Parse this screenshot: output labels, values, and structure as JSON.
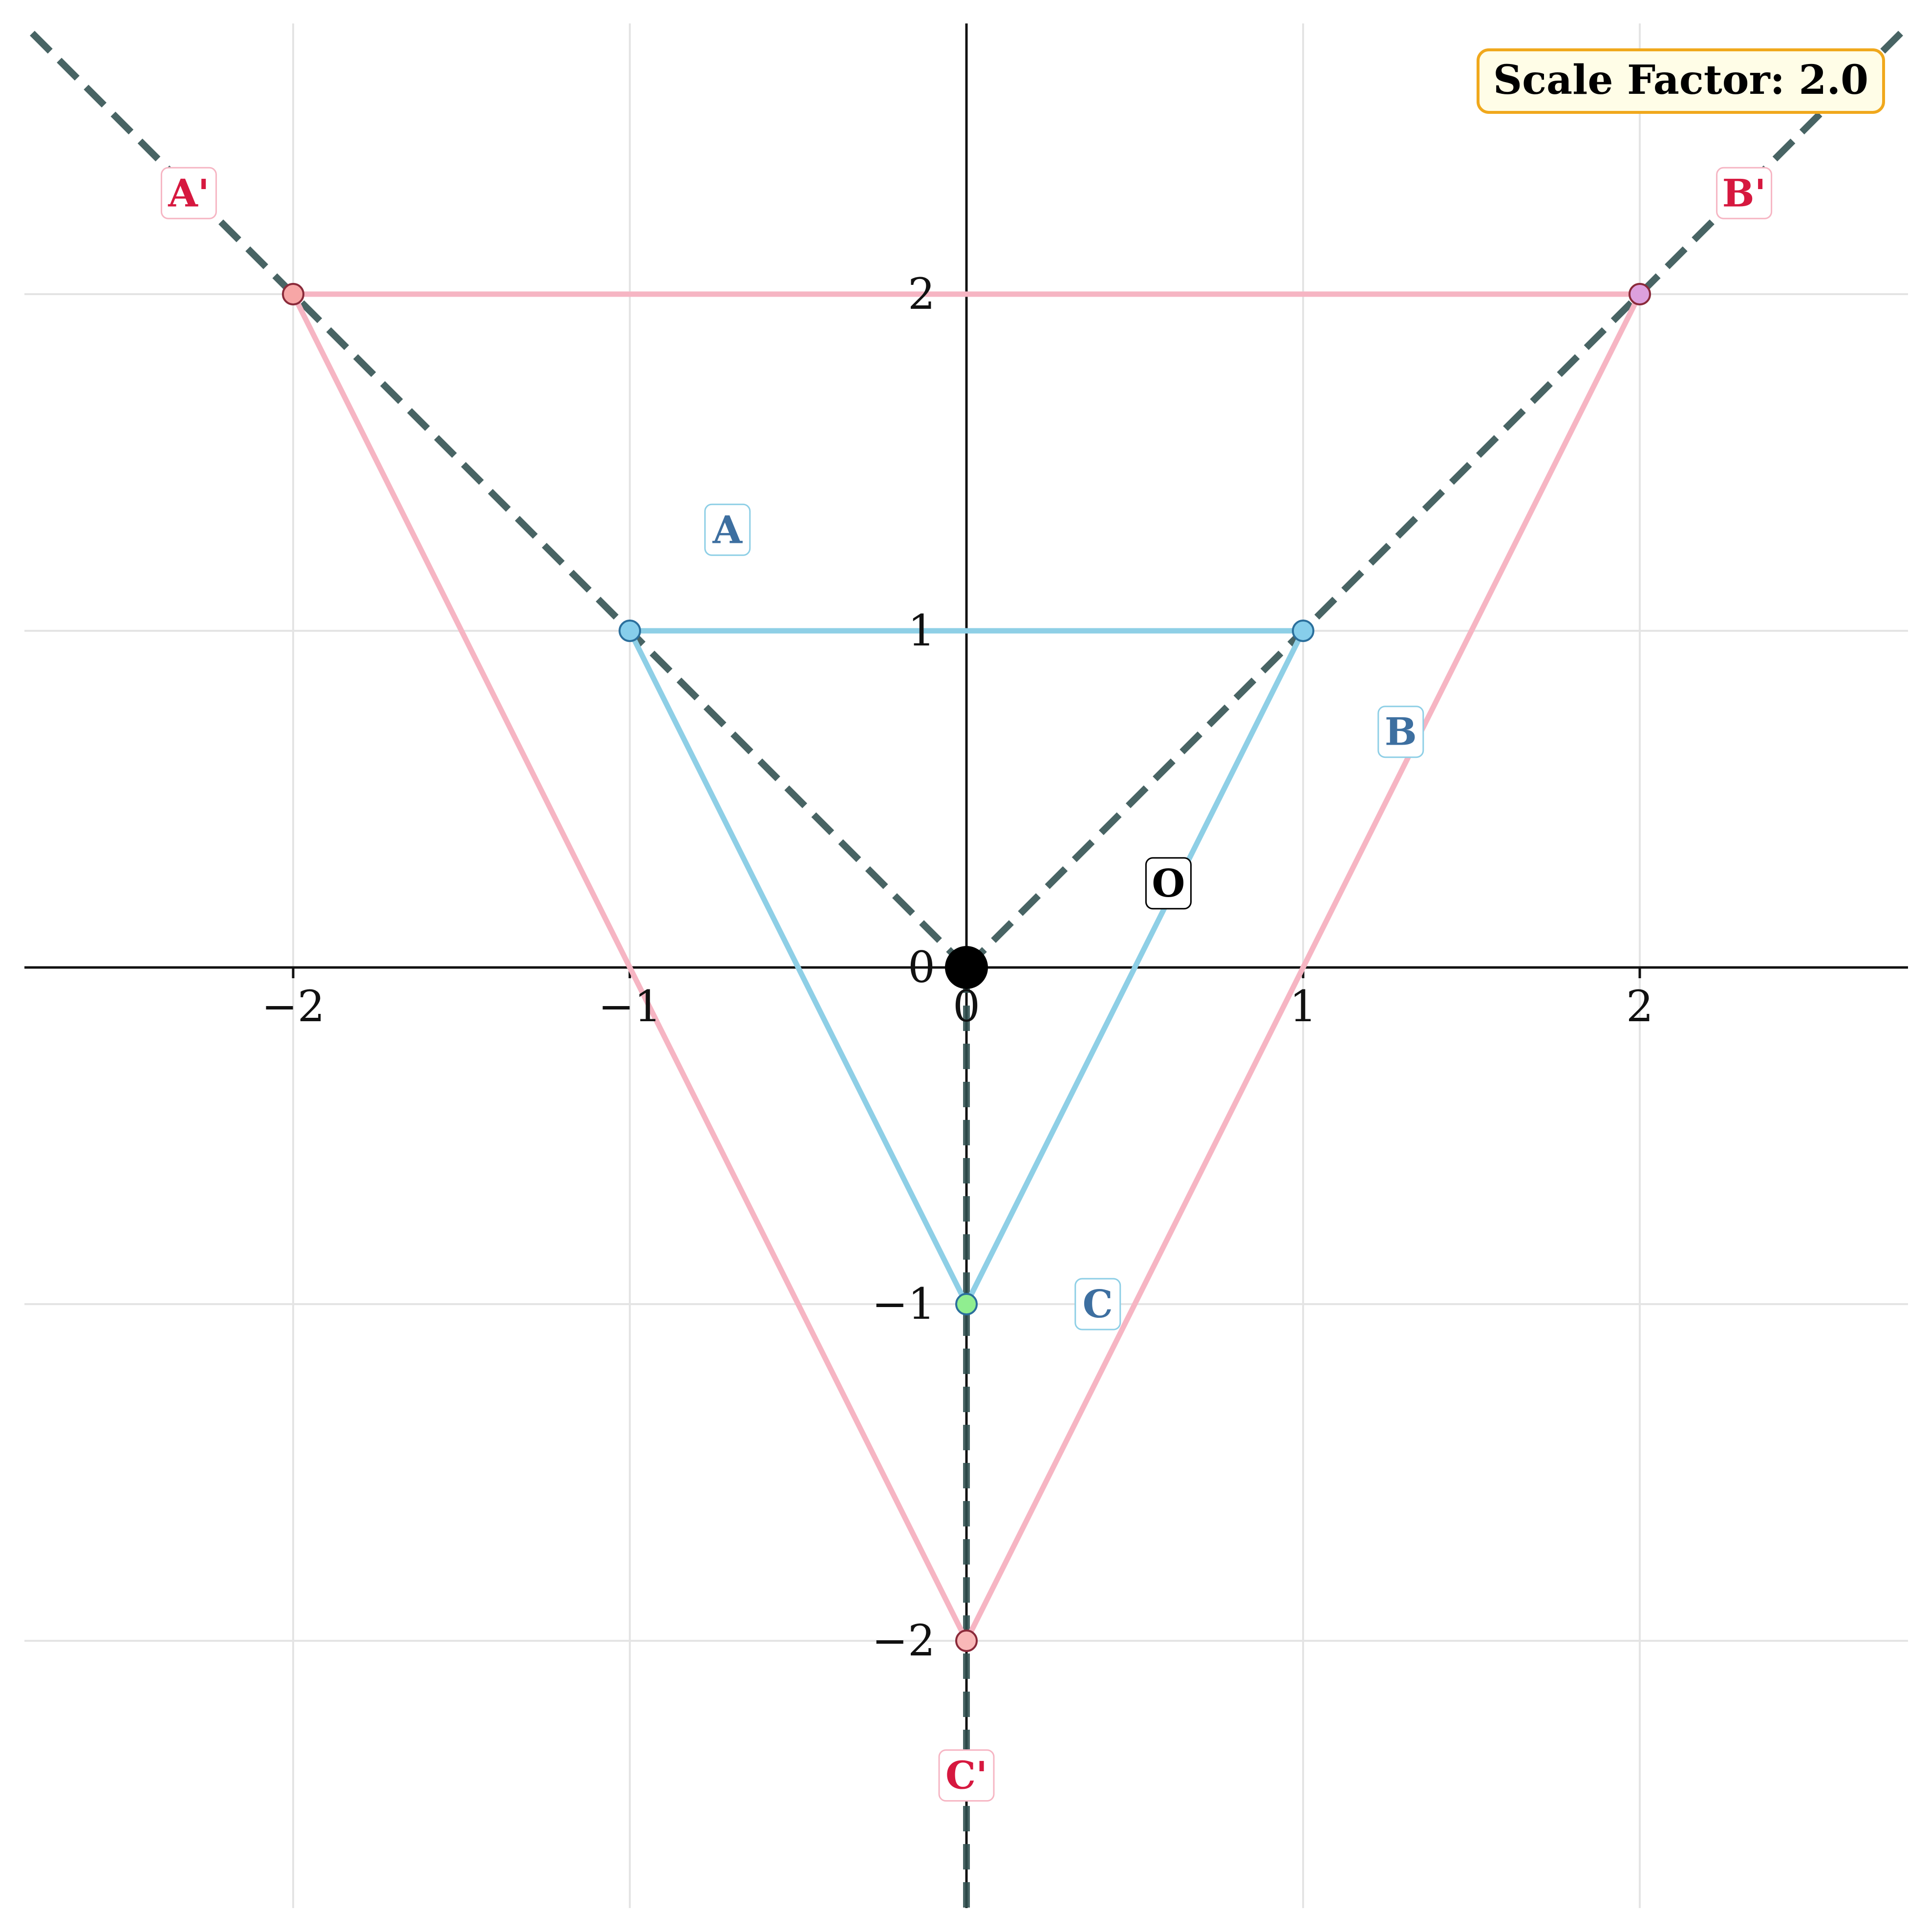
{
  "chart_data": {
    "type": "scatter",
    "xlim": [
      -2.8,
      2.8
    ],
    "ylim": [
      -2.8,
      2.8
    ],
    "grid": true,
    "xticks": [
      -2,
      -1,
      0,
      1,
      2
    ],
    "yticks": [
      -2,
      -1,
      0,
      1,
      2
    ],
    "x_tick_labels": [
      "−2",
      "−1",
      "0",
      "1",
      "2"
    ],
    "y_tick_labels": [
      "−2",
      "−1",
      "0",
      "1",
      "2"
    ],
    "center": {
      "label": "O",
      "x": 0,
      "y": 0
    },
    "annotation": "Scale Factor: 2.0",
    "scale_factor": 2.0,
    "original": {
      "color": "#8ecfe6",
      "label_color": "#3d6fa0",
      "points": [
        {
          "label": "A",
          "x": -1,
          "y": 1,
          "color": "#87ceeb"
        },
        {
          "label": "B",
          "x": 1,
          "y": 1,
          "color": "#87ceeb"
        },
        {
          "label": "C",
          "x": 0,
          "y": -1,
          "color": "#90ee90"
        }
      ]
    },
    "image": {
      "color": "#f6b5c3",
      "label_color": "#d6183f",
      "points": [
        {
          "label": "A'",
          "x": -2,
          "y": 2,
          "color": "#f7a6a6"
        },
        {
          "label": "B'",
          "x": 2,
          "y": 2,
          "color": "#dda0dd"
        },
        {
          "label": "C'",
          "x": 0,
          "y": -2,
          "color": "#f9b8b8"
        }
      ]
    },
    "ray_color": "#2f4f4f"
  }
}
